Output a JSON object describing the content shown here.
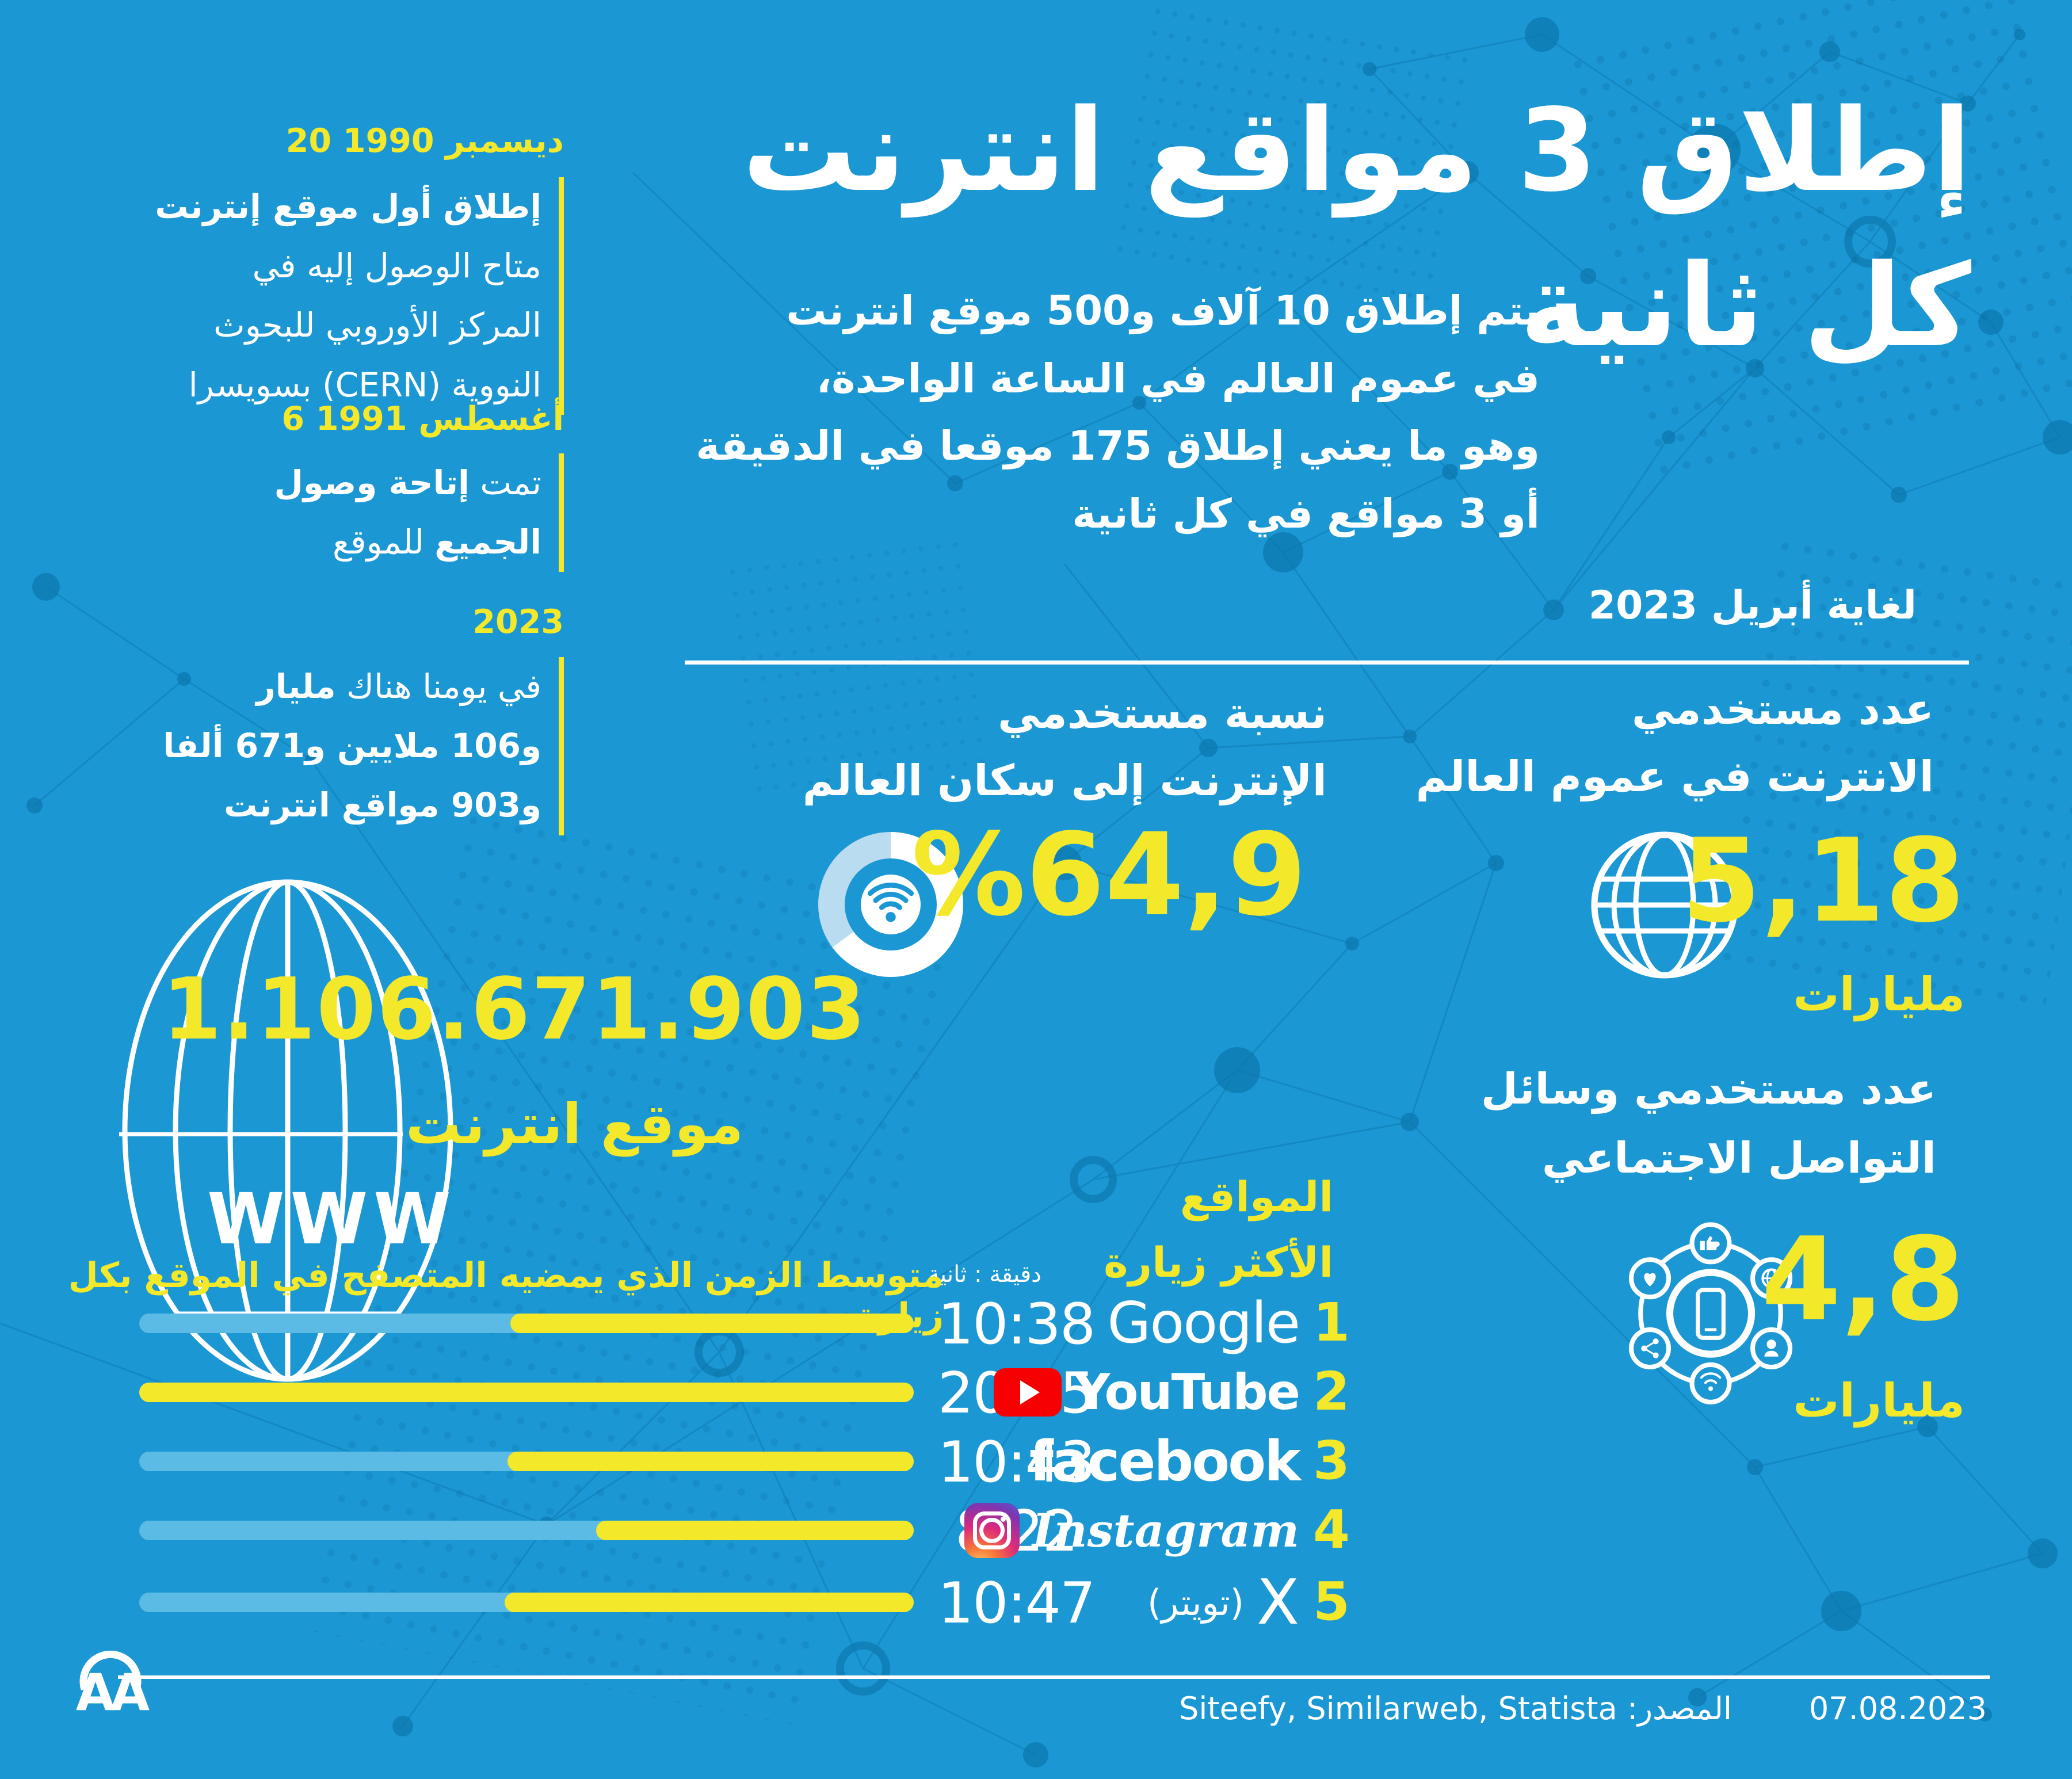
{
  "page": {
    "background": "#1b97d4",
    "accent_yellow": "#f3e82a",
    "track_blue": "#5bbbe5",
    "network_blue": "#0a74a8"
  },
  "title": {
    "line1": "إطلاق 3 مواقع انترنت",
    "line2": "كل ثانية"
  },
  "intro": {
    "line1": "يتم إطلاق 10 آلاف و500 موقع انترنت",
    "line2": "في عموم العالم في الساعة الواحدة،",
    "line3": "وهو ما يعني إطلاق 175 موقعا في الدقيقة",
    "line4": "أو 3 مواقع في كل ثانية"
  },
  "timeline": {
    "item1": {
      "date": "20 ديسمبر 1990",
      "line1": "إطلاق أول موقع إنترنت",
      "line2": "متاح الوصول إليه في",
      "line3": "المركز الأوروبي للبحوث",
      "line4": "النووية (CERN) بسويسرا"
    },
    "item2": {
      "date": "6 أغسطس 1991",
      "line1_normal": "تمت ",
      "line1_bold": "إتاحة وصول",
      "line2_bold": "الجميع",
      "line2_normal": " للموقع"
    },
    "item3": {
      "date": "2023",
      "line1_normal": "في يومنا هناك ",
      "line1_bold": "مليار",
      "line2": "و106 ملايين و671 ألفا",
      "line3": "و903 مواقع انترنت"
    }
  },
  "counter": {
    "number": "1.106.671.903",
    "label": "موقع انترنت",
    "www": "WWW"
  },
  "as_of": {
    "text": "لغاية أبريل 2023"
  },
  "penetration": {
    "heading1": "نسبة مستخدمي",
    "heading2": "الإنترنت إلى سكان العالم",
    "value": "%64,9"
  },
  "internet_users": {
    "heading1": "عدد مستخدمي",
    "heading2": "الانترنت في عموم العالم",
    "value": "5,18",
    "unit": "مليارات"
  },
  "social_users": {
    "heading1": "عدد مستخدمي وسائل",
    "heading2": "التواصل الاجتماعي",
    "value": "4,8",
    "unit": "مليارات"
  },
  "top_sites": {
    "heading1": "المواقع",
    "heading2": "الأكثر زيارة",
    "unit_note": "دقيقة : ثانية",
    "chart_title": "متوسط الزمن الذي يمضيه المتصفح في الموقع بكل زيارة",
    "rows": [
      {
        "rank": "1",
        "name": "Google",
        "time": "10:38"
      },
      {
        "rank": "2",
        "name": "YouTube",
        "time": "20:25"
      },
      {
        "rank": "3",
        "name": "facebook",
        "time": "10:43"
      },
      {
        "rank": "4",
        "name": "Instagram",
        "time": "8:22"
      },
      {
        "rank": "5",
        "name": "X",
        "note": "(تويتر)",
        "time": "10:47"
      }
    ]
  },
  "footer": {
    "source": "المصدر: Siteefy, Similarweb, Statista",
    "date": "07.08.2023",
    "logo": "AA"
  },
  "chart_data": [
    {
      "type": "pie",
      "subtype": "donut",
      "title": "نسبة مستخدمي الإنترنت إلى سكان العالم",
      "value": 64.9,
      "label": "%64,9",
      "center_icon": "wifi",
      "segments": [
        {
          "name": "مستخدمو الإنترنت",
          "value": 64.9,
          "color": "#ffffff"
        },
        {
          "name": "الباقي",
          "value": 35.1,
          "color": "#b9dcf0"
        }
      ]
    },
    {
      "type": "bar",
      "orientation": "horizontal",
      "direction": "rtl",
      "title": "متوسط الزمن الذي يمضيه المتصفح في الموقع بكل زيارة",
      "unit": "دقيقة : ثانية",
      "categories": [
        "Google",
        "YouTube",
        "facebook",
        "Instagram",
        "X (تويتر)"
      ],
      "values_label": [
        "10:38",
        "20:25",
        "10:43",
        "8:22",
        "10:47"
      ],
      "values_seconds": [
        638,
        1225,
        643,
        502,
        647
      ],
      "xlim": [
        0,
        1225
      ],
      "bar_color": "#f3e82a",
      "track_color": "#5bbbe5",
      "legend": "none",
      "grid": false
    }
  ]
}
